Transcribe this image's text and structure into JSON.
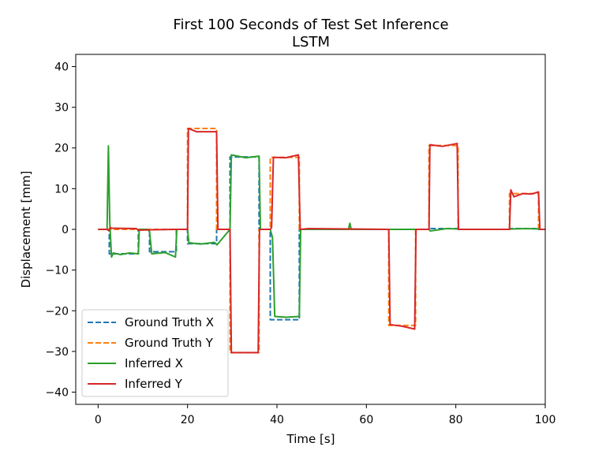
{
  "chart_data": {
    "type": "line",
    "title": "First 100 Seconds of Test Set Inference",
    "subtitle": "LSTM",
    "xlabel": "Time [s]",
    "ylabel": "Displacement [mm]",
    "xlim": [
      -5,
      100
    ],
    "ylim": [
      -43,
      43
    ],
    "xticks": [
      0,
      20,
      40,
      60,
      80,
      100
    ],
    "yticks": [
      -40,
      -30,
      -20,
      -10,
      0,
      10,
      20,
      30,
      40
    ],
    "xtick_labels": [
      "0",
      "20",
      "40",
      "60",
      "80",
      "100"
    ],
    "ytick_labels": [
      "−40",
      "−30",
      "−20",
      "−10",
      "0",
      "10",
      "20",
      "30",
      "40"
    ],
    "grid": false,
    "legend_position": "lower-left",
    "series": [
      {
        "name": "Ground Truth X",
        "color": "#1f77b4",
        "dash": "dashed",
        "x": [
          0,
          2.5,
          2.5,
          9,
          9,
          11.5,
          11.5,
          17.5,
          17.5,
          20,
          20,
          26.5,
          26.5,
          29.5,
          29.5,
          36,
          36,
          38.5,
          38.5,
          45,
          45,
          74,
          74,
          80.5,
          80.5,
          92,
          92,
          98.5,
          98.5,
          100
        ],
        "y": [
          0,
          0,
          -6,
          -6,
          0,
          0,
          -5.5,
          -5.5,
          0,
          0,
          -3.5,
          -3.5,
          0,
          0,
          17.8,
          17.8,
          0,
          0,
          -22.2,
          -22.2,
          0,
          0,
          0.2,
          0.2,
          0,
          0,
          0.2,
          0.2,
          0,
          0
        ]
      },
      {
        "name": "Ground Truth Y",
        "color": "#ff7f0e",
        "dash": "dashed",
        "x": [
          0,
          20,
          20,
          26.5,
          26.5,
          29.5,
          29.5,
          36,
          36,
          38.5,
          38.5,
          45,
          45,
          65,
          65,
          71,
          71,
          74,
          74,
          80.5,
          80.5,
          92,
          92,
          98.5,
          98.5,
          100
        ],
        "y": [
          0,
          0,
          24.8,
          24.8,
          0,
          0,
          -30.3,
          -30.3,
          0,
          0,
          17.7,
          17.7,
          0,
          0,
          -23.6,
          -23.6,
          0,
          0,
          20.6,
          20.6,
          0,
          0,
          8.8,
          8.8,
          0,
          0
        ]
      },
      {
        "name": "Inferred X",
        "color": "#2ca02c",
        "dash": "solid",
        "x": [
          0,
          2,
          2.3,
          2.6,
          3,
          3.4,
          5,
          7,
          9,
          9.2,
          11,
          11.5,
          12,
          15,
          17.3,
          17.6,
          20,
          20.3,
          23,
          26,
          26.6,
          29.5,
          29.8,
          33,
          36,
          36.3,
          38.5,
          39,
          39.5,
          42,
          45,
          45.3,
          56,
          56.3,
          56.6,
          57,
          74,
          74.3,
          78,
          80.5,
          80.8,
          92,
          92.3,
          96,
          98.5,
          98.8,
          100
        ],
        "y": [
          0,
          0,
          20.5,
          2,
          -6.8,
          -5.8,
          -6.2,
          -5.8,
          -6,
          0,
          0,
          -0.5,
          -6,
          -5.7,
          -6.8,
          0,
          0,
          -3.3,
          -3.6,
          -3.2,
          -3.8,
          0,
          18.3,
          17.6,
          18,
          0,
          0,
          -2,
          -21.4,
          -21.6,
          -21.4,
          0,
          0,
          1.5,
          0,
          0,
          0,
          -0.4,
          0.2,
          0.1,
          0,
          0,
          0.1,
          0.2,
          0.1,
          0,
          0
        ]
      },
      {
        "name": "Inferred Y",
        "color": "#d62728",
        "dash": "solid",
        "x": [
          0,
          2,
          2.4,
          2.7,
          3,
          8.5,
          9,
          12,
          17.5,
          20,
          20.2,
          22,
          26.5,
          26.8,
          29.5,
          29.8,
          33,
          35.8,
          36.1,
          38.5,
          38.8,
          39.2,
          42,
          44.8,
          45.2,
          47,
          65,
          65.3,
          68,
          70.8,
          71.1,
          74,
          74.2,
          77,
          80.3,
          80.6,
          92,
          92.3,
          93,
          95,
          97,
          98.5,
          98.8,
          100
        ],
        "y": [
          0,
          0,
          -0.3,
          0.5,
          0.3,
          0.2,
          -0.2,
          -0.1,
          0,
          0,
          24.8,
          24,
          24,
          0,
          0,
          -30.3,
          -30.3,
          -30.3,
          0,
          0,
          0.5,
          17.7,
          17.6,
          18.3,
          0,
          0.2,
          0,
          -23.4,
          -23.8,
          -24.5,
          0,
          0,
          20.8,
          20.4,
          21.1,
          0,
          0,
          9.7,
          8,
          8.8,
          8.7,
          9.2,
          0,
          0
        ]
      }
    ]
  }
}
